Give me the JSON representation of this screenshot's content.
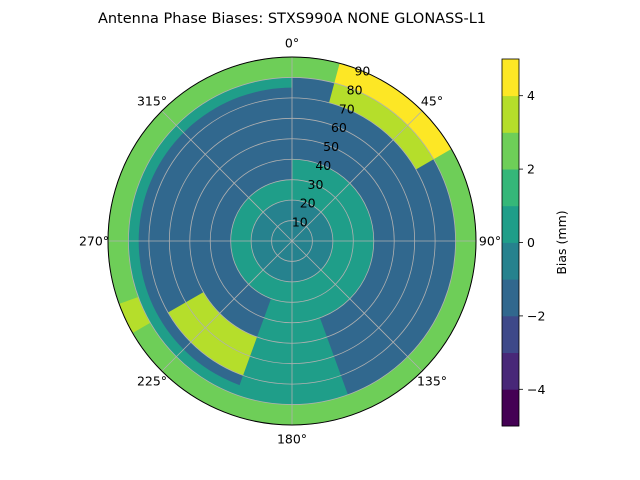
{
  "chart_data": {
    "type": "heatmap",
    "title": "Antenna Phase Biases: STXS990A        NONE GLONASS-L1",
    "projection": "polar",
    "radial_ticks": [
      "10",
      "20",
      "30",
      "40",
      "50",
      "60",
      "70",
      "80",
      "90"
    ],
    "radial_values": [
      10,
      20,
      30,
      40,
      50,
      60,
      70,
      80,
      90
    ],
    "angle_ticks": [
      "0°",
      "45°",
      "90°",
      "135°",
      "180°",
      "225°",
      "270°",
      "315°"
    ],
    "angle_values": [
      0,
      45,
      90,
      135,
      180,
      225,
      270,
      315
    ],
    "rlim": [
      0,
      90
    ],
    "grid": true,
    "colorbar": {
      "label": "Bias (mm)",
      "range": [
        -5,
        5
      ],
      "levels": [
        -5,
        -4,
        -3,
        -2,
        -1,
        0,
        1,
        2,
        3,
        4,
        5
      ],
      "tick_labels": [
        "−4",
        "−2",
        "0",
        "2",
        "4"
      ],
      "tick_values": [
        -4,
        -2,
        0,
        2,
        4
      ],
      "colors": [
        "#440154",
        "#482878",
        "#3e4989",
        "#31688e",
        "#26828e",
        "#1f9e89",
        "#35b779",
        "#6ece58",
        "#b5de2b",
        "#fde725"
      ]
    },
    "regions": [
      {
        "az_range": [
          0,
          360
        ],
        "el_range": [
          0,
          90
        ],
        "bias": 0.5
      },
      {
        "az_range": [
          200,
          360
        ],
        "el_range": [
          30,
          75
        ],
        "bias": -1.5
      },
      {
        "az_range": [
          0,
          160
        ],
        "el_range": [
          40,
          80
        ],
        "bias": -1.5
      },
      {
        "az_range": [
          0,
          360
        ],
        "el_range": [
          0,
          20
        ],
        "bias": -0.5
      },
      {
        "az_range": [
          0,
          360
        ],
        "el_range": [
          80,
          90
        ],
        "bias": 2.5
      },
      {
        "az_range": [
          15,
          60
        ],
        "el_range": [
          80,
          90
        ],
        "bias": 4.5
      },
      {
        "az_range": [
          15,
          60
        ],
        "el_range": [
          70,
          80
        ],
        "bias": 3.5
      },
      {
        "az_range": [
          200,
          240
        ],
        "el_range": [
          50,
          70
        ],
        "bias": 3.5
      },
      {
        "az_range": [
          240,
          250
        ],
        "el_range": [
          80,
          90
        ],
        "bias": 3.5
      }
    ]
  }
}
